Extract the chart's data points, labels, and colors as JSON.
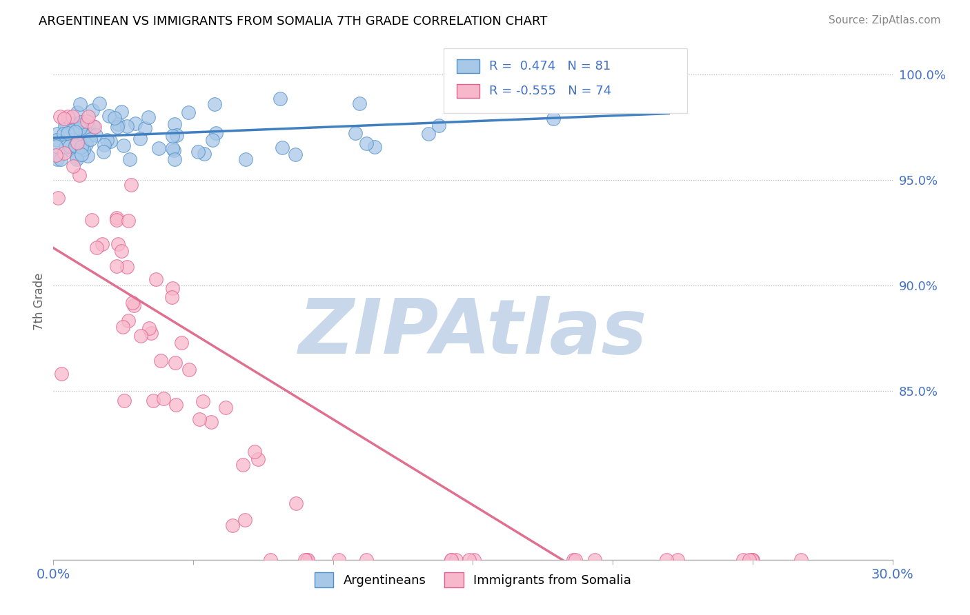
{
  "title": "ARGENTINEAN VS IMMIGRANTS FROM SOMALIA 7TH GRADE CORRELATION CHART",
  "source": "Source: ZipAtlas.com",
  "ylabel": "7th Grade",
  "right_yticks": [
    "100.0%",
    "95.0%",
    "90.0%",
    "85.0%"
  ],
  "right_ytick_vals": [
    1.0,
    0.95,
    0.9,
    0.85
  ],
  "legend_blue_label": "Argentineans",
  "legend_pink_label": "Immigrants from Somalia",
  "R_blue": 0.474,
  "N_blue": 81,
  "R_pink": -0.555,
  "N_pink": 74,
  "blue_color": "#a8c8e8",
  "pink_color": "#f8b8cc",
  "blue_edge_color": "#5090c8",
  "pink_edge_color": "#e06090",
  "blue_line_color": "#4080c0",
  "pink_line_color": "#e07090",
  "watermark": "ZIPAtlas",
  "watermark_color": "#c8d8ea",
  "xlim": [
    0.0,
    0.3
  ],
  "ylim": [
    0.77,
    1.015
  ],
  "text_color": "#4472c4",
  "source_color": "#888888"
}
